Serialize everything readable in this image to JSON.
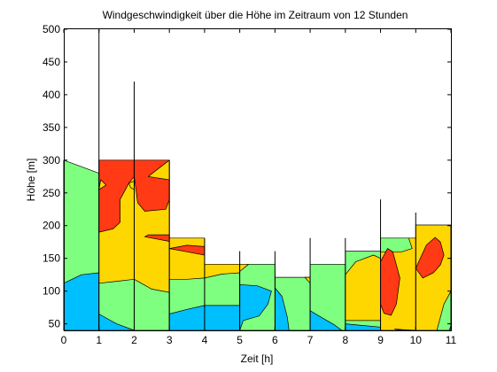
{
  "chart_data": {
    "type": "contour",
    "title": "Windgeschwindigkeit über die Höhe im Zeitraum von 12 Stunden",
    "xlabel": "Zeit [h]",
    "ylabel": "Höhe [m]",
    "xlim": [
      0,
      11
    ],
    "ylim": [
      40,
      500
    ],
    "x_ticks": [
      "0",
      "1",
      "2",
      "3",
      "4",
      "5",
      "6",
      "7",
      "8",
      "9",
      "10",
      "11"
    ],
    "y_ticks": [
      "50",
      "100",
      "150",
      "200",
      "250",
      "300",
      "350",
      "400",
      "450",
      "500"
    ],
    "colors": {
      "blue": "#00bfff",
      "green": "#7fff7f",
      "yellow": "#ffd700",
      "red": "#ff3a14",
      "background": "#ffffff"
    },
    "max_heights": [
      {
        "time": 0,
        "height": 300
      },
      {
        "time": 1,
        "height": 500
      },
      {
        "time": 2,
        "height": 420
      },
      {
        "time": 3,
        "height": 300
      },
      {
        "time": 4,
        "height": 181
      },
      {
        "time": 5,
        "height": 161
      },
      {
        "time": 6,
        "height": 161
      },
      {
        "time": 7,
        "height": 181
      },
      {
        "time": 8,
        "height": 181
      },
      {
        "time": 9,
        "height": 240
      },
      {
        "time": 10,
        "height": 220
      },
      {
        "time": 11,
        "height": 200
      }
    ],
    "regions": [
      {
        "level": "green",
        "points": [
          [
            0,
            40
          ],
          [
            0,
            300
          ],
          [
            1,
            280
          ],
          [
            1,
            40
          ]
        ]
      },
      {
        "level": "blue",
        "points": [
          [
            0,
            40
          ],
          [
            0,
            112
          ],
          [
            0.5,
            125
          ],
          [
            1,
            128
          ],
          [
            1,
            40
          ]
        ]
      },
      {
        "level": "yellow",
        "points": [
          [
            1,
            40
          ],
          [
            1,
            300
          ],
          [
            2,
            300
          ],
          [
            2,
            40
          ]
        ]
      },
      {
        "level": "green",
        "points": [
          [
            1,
            40
          ],
          [
            1,
            112
          ],
          [
            1.5,
            115
          ],
          [
            2,
            118
          ],
          [
            2,
            40
          ]
        ]
      },
      {
        "level": "blue",
        "points": [
          [
            1,
            40
          ],
          [
            1,
            65
          ],
          [
            1.5,
            50
          ],
          [
            2,
            40
          ]
        ]
      },
      {
        "level": "red",
        "points": [
          [
            1,
            190
          ],
          [
            1,
            300
          ],
          [
            2,
            300
          ],
          [
            2,
            275
          ],
          [
            1.85,
            265
          ],
          [
            1.6,
            240
          ],
          [
            1.6,
            205
          ],
          [
            1.4,
            195
          ]
        ]
      },
      {
        "level": "yellow",
        "points": [
          [
            1,
            255
          ],
          [
            1.2,
            262
          ],
          [
            1.05,
            270
          ]
        ]
      },
      {
        "level": "yellow",
        "points": [
          [
            1.85,
            265
          ],
          [
            2,
            268
          ],
          [
            2,
            255
          ],
          [
            1.9,
            258
          ]
        ]
      },
      {
        "level": "green",
        "points": [
          [
            2,
            40
          ],
          [
            2,
            300
          ],
          [
            3,
            300
          ],
          [
            3,
            40
          ]
        ]
      },
      {
        "level": "yellow",
        "points": [
          [
            2,
            40
          ],
          [
            2,
            300
          ],
          [
            3,
            300
          ],
          [
            3,
            40
          ]
        ]
      },
      {
        "level": "green",
        "points": [
          [
            2,
            40
          ],
          [
            2,
            118
          ],
          [
            2.5,
            103
          ],
          [
            3,
            98
          ],
          [
            3,
            40
          ]
        ]
      },
      {
        "level": "red",
        "points": [
          [
            2,
            275
          ],
          [
            2,
            300
          ],
          [
            3,
            300
          ],
          [
            2.4,
            275
          ],
          [
            3,
            270
          ],
          [
            3,
            240
          ],
          [
            2.9,
            225
          ],
          [
            2.3,
            222
          ],
          [
            2.1,
            235
          ]
        ]
      },
      {
        "level": "red",
        "points": [
          [
            2.3,
            183
          ],
          [
            3,
            176
          ],
          [
            3,
            186
          ],
          [
            2.4,
            186
          ]
        ]
      },
      {
        "level": "yellow",
        "points": [
          [
            3,
            40
          ],
          [
            3,
            181
          ],
          [
            4,
            181
          ],
          [
            4,
            40
          ]
        ]
      },
      {
        "level": "red",
        "points": [
          [
            3,
            165
          ],
          [
            3.5,
            160
          ],
          [
            4,
            155
          ],
          [
            4,
            168
          ],
          [
            3.5,
            170
          ]
        ]
      },
      {
        "level": "green",
        "points": [
          [
            3,
            40
          ],
          [
            3,
            118
          ],
          [
            3.5,
            118
          ],
          [
            4,
            120
          ],
          [
            4,
            40
          ]
        ]
      },
      {
        "level": "blue",
        "points": [
          [
            3,
            40
          ],
          [
            3,
            65
          ],
          [
            3.5,
            72
          ],
          [
            4,
            78
          ],
          [
            4,
            40
          ]
        ]
      },
      {
        "level": "yellow",
        "points": [
          [
            4,
            40
          ],
          [
            4,
            141
          ],
          [
            5,
            141
          ],
          [
            5,
            40
          ]
        ]
      },
      {
        "level": "green",
        "points": [
          [
            4,
            40
          ],
          [
            4,
            120
          ],
          [
            4.5,
            126
          ],
          [
            5,
            128
          ],
          [
            5,
            40
          ]
        ]
      },
      {
        "level": "blue",
        "points": [
          [
            4,
            40
          ],
          [
            4,
            78
          ],
          [
            5,
            78
          ],
          [
            5,
            40
          ]
        ]
      },
      {
        "level": "green",
        "points": [
          [
            5,
            40
          ],
          [
            5,
            141
          ],
          [
            6,
            141
          ],
          [
            6,
            40
          ]
        ]
      },
      {
        "level": "yellow",
        "points": [
          [
            5,
            130
          ],
          [
            5,
            141
          ],
          [
            5.25,
            141
          ]
        ]
      },
      {
        "level": "blue",
        "points": [
          [
            5,
            40
          ],
          [
            5,
            110
          ],
          [
            5.5,
            108
          ],
          [
            5.9,
            100
          ],
          [
            5.8,
            80
          ],
          [
            5.55,
            62
          ],
          [
            5.1,
            55
          ],
          [
            5,
            40
          ]
        ]
      },
      {
        "level": "green",
        "points": [
          [
            6,
            40
          ],
          [
            6,
            121
          ],
          [
            7,
            121
          ],
          [
            7,
            40
          ]
        ]
      },
      {
        "level": "blue",
        "points": [
          [
            6,
            40
          ],
          [
            6,
            105
          ],
          [
            6.2,
            92
          ],
          [
            6.35,
            60
          ],
          [
            6.4,
            40
          ]
        ]
      },
      {
        "level": "yellow",
        "points": [
          [
            6.85,
            121
          ],
          [
            7,
            121
          ],
          [
            7,
            112
          ]
        ]
      },
      {
        "level": "green",
        "points": [
          [
            7,
            40
          ],
          [
            7,
            141
          ],
          [
            8,
            141
          ],
          [
            8,
            40
          ]
        ]
      },
      {
        "level": "blue",
        "points": [
          [
            7,
            40
          ],
          [
            7,
            70
          ],
          [
            7.25,
            62
          ],
          [
            7.7,
            48
          ],
          [
            7.9,
            40
          ]
        ]
      },
      {
        "level": "green",
        "points": [
          [
            8,
            40
          ],
          [
            8,
            161
          ],
          [
            9,
            161
          ],
          [
            9,
            40
          ]
        ]
      },
      {
        "level": "yellow",
        "points": [
          [
            8,
            55
          ],
          [
            8,
            125
          ],
          [
            8.3,
            145
          ],
          [
            8.8,
            155
          ],
          [
            9,
            150
          ],
          [
            9,
            55
          ]
        ]
      },
      {
        "level": "blue",
        "points": [
          [
            8,
            40
          ],
          [
            8,
            50
          ],
          [
            8.4,
            48
          ],
          [
            9,
            45
          ],
          [
            9,
            40
          ]
        ]
      },
      {
        "level": "yellow",
        "points": [
          [
            9,
            40
          ],
          [
            9,
            181
          ],
          [
            10,
            181
          ],
          [
            10,
            40
          ]
        ]
      },
      {
        "level": "green",
        "points": [
          [
            9,
            160
          ],
          [
            9,
            181
          ],
          [
            9.8,
            181
          ],
          [
            9.9,
            165
          ],
          [
            9.6,
            160
          ]
        ]
      },
      {
        "level": "red",
        "points": [
          [
            9,
            80
          ],
          [
            9,
            145
          ],
          [
            9.2,
            165
          ],
          [
            9.35,
            160
          ],
          [
            9.55,
            120
          ],
          [
            9.45,
            80
          ],
          [
            9.3,
            63
          ],
          [
            9.1,
            66
          ]
        ]
      },
      {
        "level": "green",
        "points": [
          [
            9.4,
            42
          ],
          [
            9.7,
            41
          ],
          [
            10,
            40
          ],
          [
            9.6,
            40
          ]
        ]
      },
      {
        "level": "yellow",
        "points": [
          [
            10,
            40
          ],
          [
            10,
            201
          ],
          [
            11,
            201
          ],
          [
            11,
            40
          ]
        ]
      },
      {
        "level": "red",
        "points": [
          [
            10,
            135
          ],
          [
            10.3,
            170
          ],
          [
            10.55,
            182
          ],
          [
            10.7,
            175
          ],
          [
            10.8,
            155
          ],
          [
            10.7,
            140
          ],
          [
            10.5,
            128
          ],
          [
            10.2,
            120
          ]
        ]
      },
      {
        "level": "green",
        "points": [
          [
            10.6,
            40
          ],
          [
            10.8,
            80
          ],
          [
            11,
            100
          ],
          [
            11,
            40
          ]
        ]
      },
      {
        "level": "blue",
        "points": [
          [
            10.95,
            40
          ],
          [
            11,
            40
          ],
          [
            11,
            47
          ]
        ]
      }
    ]
  }
}
